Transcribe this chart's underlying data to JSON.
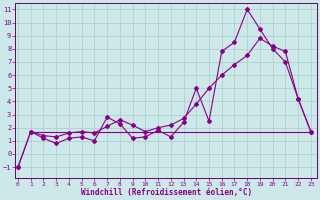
{
  "xlabel": "Windchill (Refroidissement éolien,°C)",
  "bg_color": "#cce8e8",
  "grid_color": "#aacccc",
  "line_color": "#880088",
  "spine_color": "#660066",
  "ylim": [
    -1.8,
    11.5
  ],
  "xlim": [
    -0.2,
    23.5
  ],
  "yticks": [
    -1,
    0,
    1,
    2,
    3,
    4,
    5,
    6,
    7,
    8,
    9,
    10,
    11
  ],
  "xticks": [
    0,
    1,
    2,
    3,
    4,
    5,
    6,
    7,
    8,
    9,
    10,
    11,
    12,
    13,
    14,
    15,
    16,
    17,
    18,
    19,
    20,
    21,
    22,
    23
  ],
  "line1_x": [
    0,
    1,
    2,
    3,
    4,
    5,
    6,
    7,
    8,
    9,
    10,
    11,
    12,
    13,
    14,
    15,
    16,
    17,
    18,
    19,
    20,
    21,
    22,
    23
  ],
  "line1_y": [
    -1,
    1.7,
    1.2,
    0.8,
    1.2,
    1.3,
    1.0,
    2.8,
    2.3,
    1.2,
    1.3,
    1.8,
    1.3,
    2.4,
    5.0,
    2.5,
    7.8,
    8.5,
    11.0,
    9.5,
    8.0,
    7.0,
    4.2,
    1.7
  ],
  "line2_x": [
    0,
    1,
    2,
    3,
    4,
    5,
    6,
    7,
    8,
    9,
    10,
    11,
    12,
    13,
    14,
    15,
    16,
    17,
    18,
    19,
    20,
    21,
    22,
    23
  ],
  "line2_y": [
    -1,
    1.7,
    1.4,
    1.3,
    1.6,
    1.7,
    1.6,
    2.1,
    2.6,
    2.2,
    1.7,
    2.0,
    2.2,
    2.7,
    3.8,
    5.0,
    6.0,
    6.8,
    7.5,
    8.8,
    8.2,
    7.8,
    4.2,
    1.7
  ],
  "line3_x": [
    1,
    23
  ],
  "line3_y": [
    1.7,
    1.7
  ],
  "marker_style": "D",
  "marker_size": 2.0,
  "linewidth": 0.8,
  "tick_fontsize": 5.0,
  "xlabel_fontsize": 5.5
}
